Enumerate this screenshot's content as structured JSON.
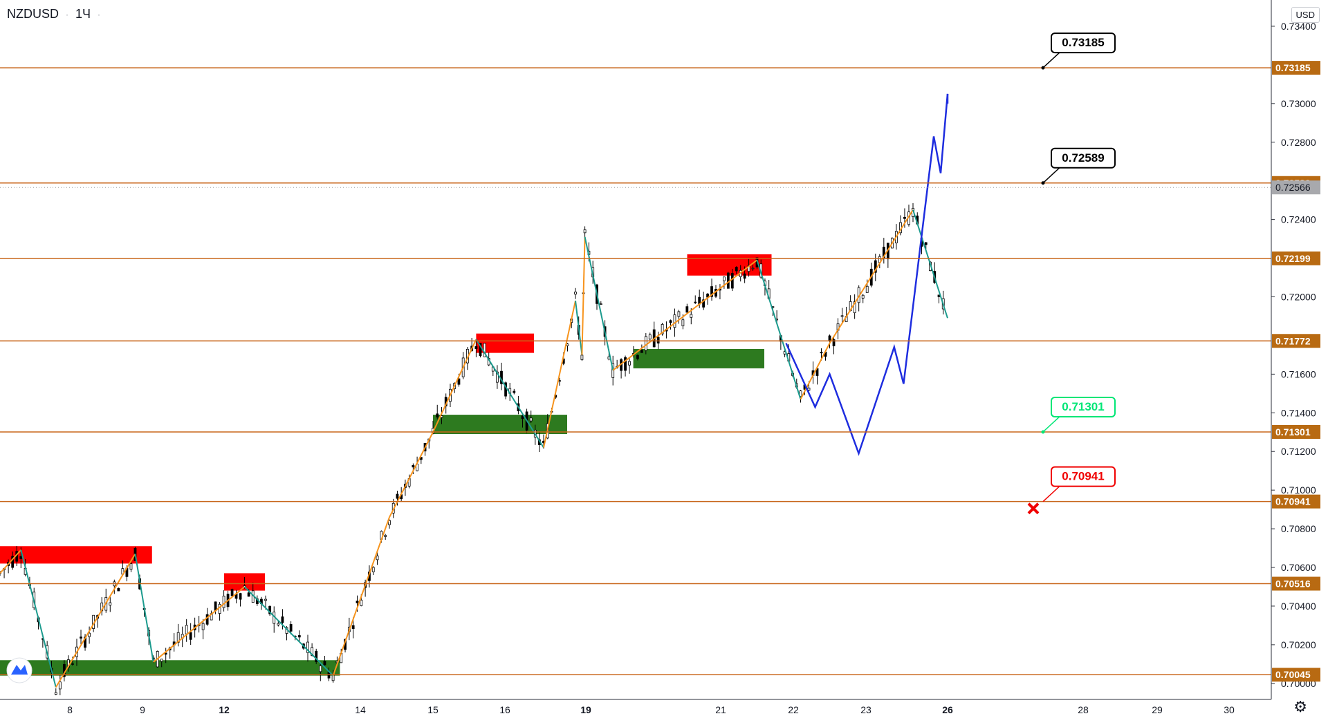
{
  "header": {
    "symbol": "NZDUSD",
    "interval": "1Ч",
    "currency": "USD"
  },
  "colors": {
    "level_line": "#c8661a",
    "level_label_bg": "#b86a12",
    "current_price_bg": "#a8a9ad",
    "supply_zone": "#ff0000",
    "demand_zone": "#2d7a1f",
    "zigzag_up": "#f7941d",
    "zigzag_down": "#1c9b8e",
    "forecast": "#1e2ddf",
    "callout_tp": "#000000",
    "callout_entry": "#00e676",
    "callout_stop": "#f00000",
    "candle_up": "#ffffff",
    "candle_down": "#000000"
  },
  "chart_data": {
    "type": "candlestick",
    "ylim": [
      0.6996,
      0.735
    ],
    "y_ticks": [
      "0.73400",
      "0.73000",
      "0.72800",
      "0.72400",
      "0.72000",
      "0.71600",
      "0.71400",
      "0.71200",
      "0.71000",
      "0.70800",
      "0.70600",
      "0.70400",
      "0.70200",
      "0.70000"
    ],
    "x_ticks": [
      "8",
      "9",
      "12",
      "14",
      "15",
      "16",
      "19",
      "21",
      "22",
      "23",
      "26",
      "28",
      "29",
      "30"
    ],
    "x_ticks_bold": [
      "12",
      "19",
      "26"
    ],
    "current_price": "0.72566",
    "levels": [
      "0.73185",
      "0.72589",
      "0.72199",
      "0.71772",
      "0.71301",
      "0.70941",
      "0.70516",
      "0.70045"
    ],
    "zones": [
      {
        "kind": "supply",
        "from": "7",
        "to": "9.35",
        "low": 0.7062,
        "high": 0.7071
      },
      {
        "kind": "supply",
        "from": "12.0",
        "to": "12.6",
        "low": 0.7048,
        "high": 0.7057
      },
      {
        "kind": "demand",
        "from": "7",
        "to": "13.7",
        "low": 0.7004,
        "high": 0.7012
      },
      {
        "kind": "supply",
        "from": "15.6",
        "to": "16.6",
        "low": 0.7171,
        "high": 0.7181
      },
      {
        "kind": "demand",
        "from": "15",
        "to": "17.5",
        "low": 0.7129,
        "high": 0.7139
      },
      {
        "kind": "supply",
        "from": "20.5",
        "to": "21.7",
        "low": 0.7211,
        "high": 0.7222
      },
      {
        "kind": "demand",
        "from": "19.7",
        "to": "21.6",
        "low": 0.7163,
        "high": 0.7173
      }
    ],
    "callouts": [
      {
        "label": "0.73185",
        "kind": "target"
      },
      {
        "label": "0.72589",
        "kind": "target"
      },
      {
        "label": "0.71301",
        "kind": "entry"
      },
      {
        "label": "0.70941",
        "kind": "stop"
      }
    ],
    "zigzag": [
      [
        "7",
        0.7057
      ],
      [
        "7.3",
        0.7069
      ],
      [
        "7.8",
        0.6998
      ],
      [
        "8.9",
        0.7067
      ],
      [
        "9.4",
        0.7011
      ],
      [
        "12.3",
        0.705
      ],
      [
        "13.6",
        0.7004
      ],
      [
        "14.4",
        0.7086
      ],
      [
        "15.0",
        0.713
      ],
      [
        "15.6",
        0.7178
      ],
      [
        "16.8",
        0.7122
      ],
      [
        "17.8",
        0.7198
      ],
      [
        "18.2",
        0.717
      ],
      [
        "18.8",
        0.7231
      ],
      [
        "19.4",
        0.7162
      ],
      [
        "21.5",
        0.7219
      ],
      [
        "22.1",
        0.7147
      ],
      [
        "22.5",
        0.7176
      ],
      [
        "24.0",
        0.7245
      ],
      [
        "25.3",
        0.7189
      ]
    ],
    "forecast_path": [
      [
        "21.9",
        0.7176
      ],
      [
        "22.3",
        0.7143
      ],
      [
        "22.5",
        0.716
      ],
      [
        "22.9",
        0.7119
      ],
      [
        "23.6",
        0.7174
      ],
      [
        "23.8",
        0.7155
      ],
      [
        "24.6",
        0.7283
      ],
      [
        "24.8",
        0.7264
      ],
      [
        "25.2",
        0.7305
      ]
    ],
    "forecast_tail": [
      [
        "25.1",
        0.73
      ],
      [
        "25.2",
        0.7305
      ],
      [
        "25.3",
        0.7301
      ]
    ],
    "candles": []
  }
}
